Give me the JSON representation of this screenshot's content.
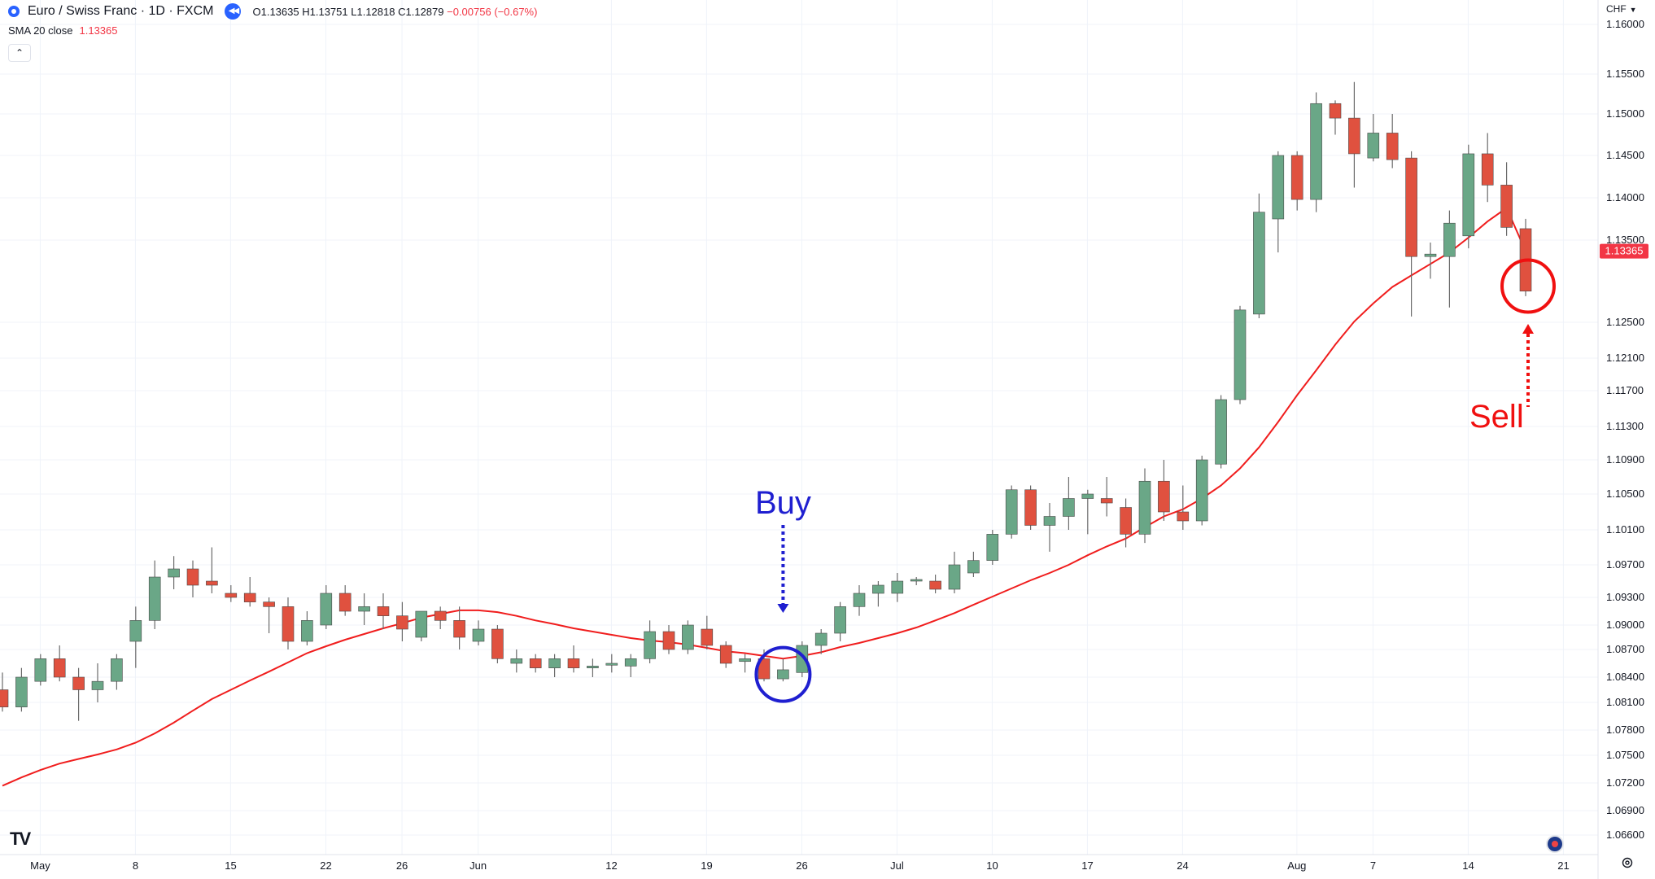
{
  "header": {
    "symbol_title": "Euro / Swiss Franc · 1D · FXCM",
    "open_label": "O",
    "open": "1.13635",
    "high_label": "H",
    "high": "1.13751",
    "low_label": "L",
    "low": "1.12818",
    "close_label": "C",
    "close": "1.12879",
    "change": "−0.00756 (−0.67%)"
  },
  "indicator": {
    "name": "SMA 20 close",
    "value": "1.13365"
  },
  "collapse_glyph": "⌃",
  "currency": "CHF",
  "logo_text": "TV",
  "annotations": {
    "buy": "Buy",
    "sell": "Sell"
  },
  "colors": {
    "up": "#6aa787",
    "down": "#e0513f",
    "sma": "#f01d1d",
    "buy": "#1f1fd0",
    "sell": "#f01010",
    "grid": "#f0f3fa"
  },
  "icons": [
    "symbol-icon",
    "replay-icon",
    "collapse-icon",
    "tradingview-logo-icon",
    "globe-icon",
    "gear-icon"
  ],
  "chart_data": {
    "type": "candlestick",
    "title": "Euro / Swiss Franc · 1D · FXCM",
    "y_axis": {
      "ticks": [
        "1.16000",
        "1.15500",
        "1.15000",
        "1.14500",
        "1.14000",
        "1.13500",
        "1.12500",
        "1.12100",
        "1.11700",
        "1.11300",
        "1.10900",
        "1.10500",
        "1.10100",
        "1.09700",
        "1.09300",
        "1.09000",
        "1.08700",
        "1.08400",
        "1.08100",
        "1.07800",
        "1.07500",
        "1.07200",
        "1.06900",
        "1.06600"
      ],
      "tick_values": [
        1.16,
        1.155,
        1.15,
        1.145,
        1.14,
        1.135,
        1.125,
        1.121,
        1.117,
        1.113,
        1.109,
        1.105,
        1.101,
        1.097,
        1.093,
        1.09,
        1.087,
        1.084,
        1.081,
        1.078,
        1.075,
        1.072,
        1.069,
        1.066
      ],
      "last_price_label": "1.13365",
      "last_price": 1.13365
    },
    "x_axis": {
      "labels": [
        "May",
        "8",
        "15",
        "22",
        "26",
        "Jun",
        "12",
        "19",
        "26",
        "Jul",
        "10",
        "17",
        "24",
        "Aug",
        "7",
        "14",
        "21"
      ],
      "label_index": [
        1.9,
        6.9,
        11.9,
        16.9,
        20.9,
        24.9,
        31.9,
        36.9,
        41.9,
        46.9,
        51.9,
        56.9,
        61.9,
        67.9,
        71.9,
        76.9,
        81.9
      ]
    },
    "candles": [
      {
        "o": 1.0825,
        "h": 1.0845,
        "l": 1.08,
        "c": 1.0805
      },
      {
        "o": 1.0805,
        "h": 1.085,
        "l": 1.08,
        "c": 1.084
      },
      {
        "o": 1.0835,
        "h": 1.0865,
        "l": 1.083,
        "c": 1.086
      },
      {
        "o": 1.086,
        "h": 1.0875,
        "l": 1.0835,
        "c": 1.084
      },
      {
        "o": 1.084,
        "h": 1.085,
        "l": 1.079,
        "c": 1.0825
      },
      {
        "o": 1.0825,
        "h": 1.0855,
        "l": 1.081,
        "c": 1.0835
      },
      {
        "o": 1.0835,
        "h": 1.0865,
        "l": 1.0825,
        "c": 1.086
      },
      {
        "o": 1.088,
        "h": 1.092,
        "l": 1.085,
        "c": 1.0905
      },
      {
        "o": 1.0905,
        "h": 1.0975,
        "l": 1.0895,
        "c": 1.0955
      },
      {
        "o": 1.0955,
        "h": 1.098,
        "l": 1.094,
        "c": 1.0965
      },
      {
        "o": 1.0965,
        "h": 1.0975,
        "l": 1.093,
        "c": 1.0945
      },
      {
        "o": 1.095,
        "h": 1.099,
        "l": 1.0935,
        "c": 1.0945
      },
      {
        "o": 1.0935,
        "h": 1.0945,
        "l": 1.0925,
        "c": 1.093
      },
      {
        "o": 1.0935,
        "h": 1.0955,
        "l": 1.092,
        "c": 1.0925
      },
      {
        "o": 1.0925,
        "h": 1.093,
        "l": 1.089,
        "c": 1.092
      },
      {
        "o": 1.092,
        "h": 1.093,
        "l": 1.087,
        "c": 1.088
      },
      {
        "o": 1.088,
        "h": 1.0915,
        "l": 1.0875,
        "c": 1.0905
      },
      {
        "o": 1.09,
        "h": 1.0945,
        "l": 1.0895,
        "c": 1.0935
      },
      {
        "o": 1.0935,
        "h": 1.0945,
        "l": 1.091,
        "c": 1.0915
      },
      {
        "o": 1.0915,
        "h": 1.0935,
        "l": 1.09,
        "c": 1.092
      },
      {
        "o": 1.092,
        "h": 1.0935,
        "l": 1.0895,
        "c": 1.091
      },
      {
        "o": 1.091,
        "h": 1.0925,
        "l": 1.088,
        "c": 1.0895
      },
      {
        "o": 1.0885,
        "h": 1.0915,
        "l": 1.088,
        "c": 1.0915
      },
      {
        "o": 1.0915,
        "h": 1.092,
        "l": 1.0895,
        "c": 1.0905
      },
      {
        "o": 1.0905,
        "h": 1.092,
        "l": 1.087,
        "c": 1.0885
      },
      {
        "o": 1.088,
        "h": 1.0905,
        "l": 1.0875,
        "c": 1.0895
      },
      {
        "o": 1.0895,
        "h": 1.09,
        "l": 1.0855,
        "c": 1.086
      },
      {
        "o": 1.0855,
        "h": 1.087,
        "l": 1.0845,
        "c": 1.086
      },
      {
        "o": 1.086,
        "h": 1.0865,
        "l": 1.0845,
        "c": 1.085
      },
      {
        "o": 1.085,
        "h": 1.0865,
        "l": 1.084,
        "c": 1.086
      },
      {
        "o": 1.086,
        "h": 1.0875,
        "l": 1.0845,
        "c": 1.085
      },
      {
        "o": 1.085,
        "h": 1.086,
        "l": 1.084,
        "c": 1.0852
      },
      {
        "o": 1.0853,
        "h": 1.0865,
        "l": 1.0845,
        "c": 1.0855
      },
      {
        "o": 1.0852,
        "h": 1.0865,
        "l": 1.084,
        "c": 1.086
      },
      {
        "o": 1.086,
        "h": 1.0905,
        "l": 1.0855,
        "c": 1.0892
      },
      {
        "o": 1.0892,
        "h": 1.09,
        "l": 1.0865,
        "c": 1.087
      },
      {
        "o": 1.087,
        "h": 1.0905,
        "l": 1.0865,
        "c": 1.09
      },
      {
        "o": 1.0895,
        "h": 1.091,
        "l": 1.087,
        "c": 1.0875
      },
      {
        "o": 1.0875,
        "h": 1.088,
        "l": 1.085,
        "c": 1.0855
      },
      {
        "o": 1.0857,
        "h": 1.0865,
        "l": 1.0845,
        "c": 1.086
      },
      {
        "o": 1.086,
        "h": 1.087,
        "l": 1.0835,
        "c": 1.0838
      },
      {
        "o": 1.0838,
        "h": 1.086,
        "l": 1.0835,
        "c": 1.0848
      },
      {
        "o": 1.0845,
        "h": 1.088,
        "l": 1.084,
        "c": 1.0875
      },
      {
        "o": 1.0875,
        "h": 1.0895,
        "l": 1.0865,
        "c": 1.089
      },
      {
        "o": 1.089,
        "h": 1.0925,
        "l": 1.088,
        "c": 1.092
      },
      {
        "o": 1.092,
        "h": 1.0945,
        "l": 1.091,
        "c": 1.0935
      },
      {
        "o": 1.0935,
        "h": 1.095,
        "l": 1.092,
        "c": 1.0945
      },
      {
        "o": 1.0935,
        "h": 1.096,
        "l": 1.0925,
        "c": 1.095
      },
      {
        "o": 1.095,
        "h": 1.0955,
        "l": 1.0945,
        "c": 1.0952
      },
      {
        "o": 1.095,
        "h": 1.0958,
        "l": 1.0935,
        "c": 1.094
      },
      {
        "o": 1.094,
        "h": 1.0985,
        "l": 1.0935,
        "c": 1.097
      },
      {
        "o": 1.096,
        "h": 1.0985,
        "l": 1.0955,
        "c": 1.0975
      },
      {
        "o": 1.0975,
        "h": 1.101,
        "l": 1.097,
        "c": 1.1005
      },
      {
        "o": 1.1005,
        "h": 1.106,
        "l": 1.1,
        "c": 1.1055
      },
      {
        "o": 1.1055,
        "h": 1.106,
        "l": 1.101,
        "c": 1.1015
      },
      {
        "o": 1.1015,
        "h": 1.104,
        "l": 1.0985,
        "c": 1.1025
      },
      {
        "o": 1.1025,
        "h": 1.107,
        "l": 1.101,
        "c": 1.1045
      },
      {
        "o": 1.1045,
        "h": 1.1055,
        "l": 1.1005,
        "c": 1.105
      },
      {
        "o": 1.1045,
        "h": 1.107,
        "l": 1.1025,
        "c": 1.104
      },
      {
        "o": 1.1035,
        "h": 1.1045,
        "l": 1.099,
        "c": 1.1005
      },
      {
        "o": 1.1005,
        "h": 1.108,
        "l": 1.0995,
        "c": 1.1065
      },
      {
        "o": 1.1065,
        "h": 1.109,
        "l": 1.102,
        "c": 1.103
      },
      {
        "o": 1.103,
        "h": 1.106,
        "l": 1.101,
        "c": 1.102
      },
      {
        "o": 1.102,
        "h": 1.1095,
        "l": 1.1015,
        "c": 1.109
      },
      {
        "o": 1.1085,
        "h": 1.1165,
        "l": 1.108,
        "c": 1.116
      },
      {
        "o": 1.116,
        "h": 1.127,
        "l": 1.1155,
        "c": 1.1265
      },
      {
        "o": 1.126,
        "h": 1.1405,
        "l": 1.1255,
        "c": 1.1383
      },
      {
        "o": 1.1375,
        "h": 1.1455,
        "l": 1.1335,
        "c": 1.145
      },
      {
        "o": 1.145,
        "h": 1.1455,
        "l": 1.1385,
        "c": 1.1398
      },
      {
        "o": 1.1398,
        "h": 1.1527,
        "l": 1.1383,
        "c": 1.1513
      },
      {
        "o": 1.1513,
        "h": 1.1517,
        "l": 1.1475,
        "c": 1.1495
      },
      {
        "o": 1.1495,
        "h": 1.154,
        "l": 1.1412,
        "c": 1.1452
      },
      {
        "o": 1.1447,
        "h": 1.15,
        "l": 1.1443,
        "c": 1.1477
      },
      {
        "o": 1.1477,
        "h": 1.15,
        "l": 1.1435,
        "c": 1.1445
      },
      {
        "o": 1.1447,
        "h": 1.1455,
        "l": 1.1257,
        "c": 1.133
      },
      {
        "o": 1.133,
        "h": 1.1347,
        "l": 1.1303,
        "c": 1.1333
      },
      {
        "o": 1.133,
        "h": 1.1385,
        "l": 1.1268,
        "c": 1.137
      },
      {
        "o": 1.1355,
        "h": 1.1463,
        "l": 1.134,
        "c": 1.1452
      },
      {
        "o": 1.1452,
        "h": 1.1477,
        "l": 1.1395,
        "c": 1.1415
      },
      {
        "o": 1.1415,
        "h": 1.1442,
        "l": 1.1355,
        "c": 1.1365
      },
      {
        "o": 1.13635,
        "h": 1.13751,
        "l": 1.12818,
        "c": 1.12879
      }
    ],
    "sma_20": [
      1.0717,
      1.0726,
      1.0734,
      1.0741,
      1.0746,
      1.0751,
      1.0757,
      1.0765,
      1.0776,
      1.0788,
      1.0801,
      1.0814,
      1.0825,
      1.0836,
      1.0846,
      1.0856,
      1.0866,
      1.0874,
      1.0882,
      1.0889,
      1.0896,
      1.0902,
      1.0908,
      1.0912,
      1.0916,
      1.0916,
      1.0914,
      1.091,
      1.0905,
      1.0901,
      1.0896,
      1.0892,
      1.0888,
      1.0884,
      1.0881,
      1.0879,
      1.0876,
      1.0872,
      1.0868,
      1.0866,
      1.0863,
      1.086,
      1.0863,
      1.0867,
      1.0873,
      1.0878,
      1.0884,
      1.089,
      1.0897,
      1.0905,
      1.0913,
      1.0922,
      1.0931,
      1.0941,
      1.0951,
      1.096,
      1.097,
      1.0981,
      1.0991,
      1.1,
      1.1013,
      1.1025,
      1.1033,
      1.1045,
      1.106,
      1.108,
      1.1105,
      1.1135,
      1.1165,
      1.1195,
      1.1225,
      1.1251,
      1.1273,
      1.1293,
      1.1307,
      1.1321,
      1.1335,
      1.1353,
      1.1372,
      1.1388,
      1.13365
    ],
    "buy_index": 41,
    "sell_index": 80
  }
}
